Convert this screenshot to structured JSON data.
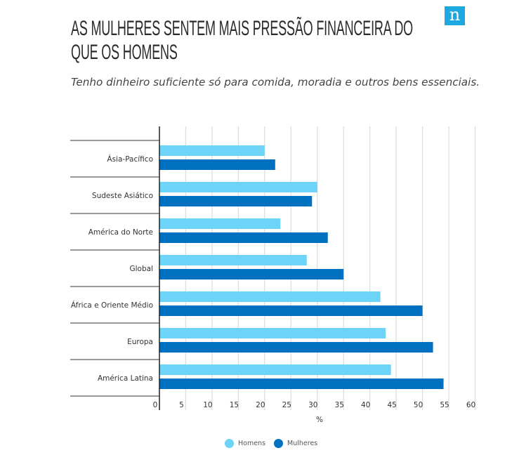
{
  "header": {
    "title_line1": "AS MULHERES SENTEM MAIS PRESSÃO FINANCEIRA DO",
    "title_line2": "QUE OS HOMENS",
    "subtitle": "Tenho dinheiro suficiente só para comida, moradia e outros bens essenciais.",
    "logo": "n"
  },
  "chart_data": {
    "type": "bar",
    "orientation": "horizontal",
    "categories": [
      "Ásia-Pacífico",
      "Sudeste Asiático",
      "América do Norte",
      "Global",
      "África e Oriente Médio",
      "Europa",
      "América Latina"
    ],
    "series": [
      {
        "name": "Homens",
        "color": "#6dd3f7",
        "values": [
          20,
          30,
          23,
          28,
          42,
          43,
          44
        ]
      },
      {
        "name": "Mulheres",
        "color": "#0071c0",
        "values": [
          22,
          29,
          32,
          35,
          50,
          52,
          54
        ]
      }
    ],
    "xlabel": "%",
    "xlim": [
      0,
      60
    ],
    "xticks": [
      0,
      5,
      10,
      15,
      20,
      25,
      30,
      35,
      40,
      45,
      50,
      55,
      60
    ],
    "grid": true,
    "legend": "bottom"
  }
}
